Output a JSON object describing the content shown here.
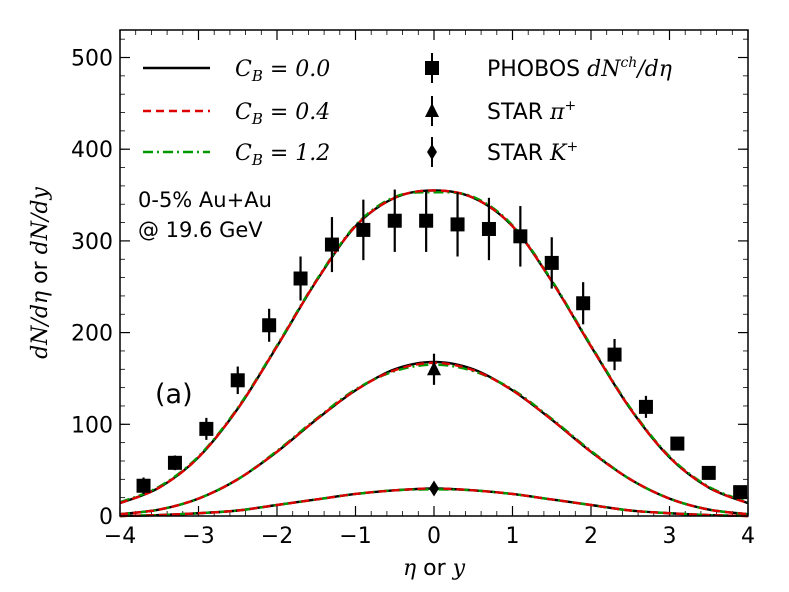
{
  "chart_data": {
    "type": "line",
    "xlabel": "η or y",
    "ylabel": "dN/dη or dN/dy",
    "xlim": [
      -4,
      4
    ],
    "ylim": [
      0,
      530
    ],
    "x_ticks": [
      -4,
      -3,
      -2,
      -1,
      0,
      1,
      2,
      3,
      4
    ],
    "x_tick_labels": [
      "−4",
      "−3",
      "−2",
      "−1",
      "0",
      "1",
      "2",
      "3",
      "4"
    ],
    "y_ticks": [
      0,
      100,
      200,
      300,
      400,
      500
    ],
    "y_tick_labels": [
      "0",
      "100",
      "200",
      "300",
      "400",
      "500"
    ],
    "legend_position": "top",
    "annotations": {
      "system_line1": "0-5% Au+Au",
      "system_line2": "@ 19.6 GeV",
      "panel": "(a)"
    },
    "colors": {
      "cb00": "#000000",
      "cb04": "#dd0000",
      "cb12": "#009900",
      "data": "#000000"
    },
    "theory_x": [
      -4.0,
      -3.5,
      -3.0,
      -2.5,
      -2.0,
      -1.5,
      -1.0,
      -0.5,
      0.0,
      0.5,
      1.0,
      1.5,
      2.0,
      2.5,
      3.0,
      3.5,
      4.0
    ],
    "lines": [
      {
        "group": "charged",
        "name": "C_B = 0.0",
        "style": "solid",
        "values": [
          14,
          31,
          64,
          117,
          185,
          256,
          316,
          347,
          355,
          347,
          316,
          256,
          185,
          117,
          64,
          31,
          14
        ]
      },
      {
        "group": "charged",
        "name": "C_B = 0.4",
        "style": "dashed",
        "values": [
          14,
          31,
          64,
          117,
          185,
          256,
          316,
          347,
          355,
          347,
          316,
          256,
          185,
          117,
          64,
          31,
          14
        ]
      },
      {
        "group": "charged",
        "name": "C_B = 1.2",
        "style": "dashdot",
        "values": [
          15,
          32,
          65,
          118,
          186,
          257,
          317,
          348,
          353,
          348,
          317,
          257,
          186,
          118,
          65,
          32,
          15
        ]
      },
      {
        "group": "pion",
        "name": "C_B = 0.0",
        "style": "solid",
        "values": [
          2,
          7,
          19,
          40,
          70,
          105,
          137,
          160,
          168,
          160,
          137,
          105,
          70,
          40,
          19,
          7,
          2
        ]
      },
      {
        "group": "pion",
        "name": "C_B = 0.4",
        "style": "dashed",
        "values": [
          2,
          7,
          19,
          40,
          70,
          105,
          137,
          159,
          167,
          159,
          137,
          105,
          70,
          40,
          19,
          7,
          2
        ]
      },
      {
        "group": "pion",
        "name": "C_B = 1.2",
        "style": "dashdot",
        "values": [
          2,
          7,
          19,
          40,
          71,
          106,
          138,
          158,
          165,
          158,
          138,
          106,
          71,
          40,
          19,
          7,
          2
        ]
      },
      {
        "group": "kaon",
        "name": "C_B = 0.0",
        "style": "solid",
        "values": [
          0,
          1,
          3,
          6,
          12,
          18,
          24,
          28,
          30,
          28,
          24,
          18,
          12,
          6,
          3,
          1,
          0
        ]
      },
      {
        "group": "kaon",
        "name": "C_B = 0.4",
        "style": "dashed",
        "values": [
          0,
          1,
          3,
          6,
          12,
          18,
          24,
          28,
          30,
          28,
          24,
          18,
          12,
          6,
          3,
          1,
          0
        ]
      },
      {
        "group": "kaon",
        "name": "C_B = 1.2",
        "style": "dashdot",
        "values": [
          0,
          1,
          3,
          6,
          12,
          18,
          24,
          28,
          29,
          28,
          24,
          18,
          12,
          6,
          3,
          1,
          0
        ]
      }
    ],
    "phobos": {
      "x": [
        -3.7,
        -3.3,
        -2.9,
        -2.5,
        -2.1,
        -1.7,
        -1.3,
        -0.9,
        -0.5,
        -0.1,
        0.3,
        0.7,
        1.1,
        1.5,
        1.9,
        2.3,
        2.7,
        3.1,
        3.5,
        3.9
      ],
      "y": [
        33,
        58,
        95,
        148,
        208,
        259,
        296,
        312,
        322,
        322,
        318,
        313,
        305,
        276,
        232,
        176,
        119,
        79,
        47,
        26
      ],
      "err": [
        9,
        8,
        12,
        15,
        18,
        24,
        30,
        33,
        34,
        34,
        35,
        34,
        33,
        28,
        23,
        17,
        12,
        0,
        0,
        0
      ]
    },
    "star_pion": {
      "x": [
        0.0
      ],
      "y": [
        160
      ],
      "err": [
        17
      ]
    },
    "star_kaon": {
      "x": [
        0.0
      ],
      "y": [
        30
      ],
      "err": [
        4
      ]
    },
    "legend": {
      "lines": [
        {
          "label_prefix": "C",
          "label_sub": "B",
          "label_eq": "= 0.0",
          "color": "#000000",
          "style": "solid"
        },
        {
          "label_prefix": "C",
          "label_sub": "B",
          "label_eq": "= 0.4",
          "color": "#dd0000",
          "style": "dashed"
        },
        {
          "label_prefix": "C",
          "label_sub": "B",
          "label_eq": "= 1.2",
          "color": "#009900",
          "style": "dashdot"
        }
      ],
      "markers": [
        {
          "text": "PHOBOS",
          "math": "dN",
          "sup": "ch",
          "math2": "/dη",
          "marker": "square"
        },
        {
          "text": "STAR",
          "math": "π",
          "sup": "+",
          "math2": "",
          "marker": "triangle"
        },
        {
          "text": "STAR",
          "math": "K",
          "sup": "+",
          "math2": "",
          "marker": "diamond"
        }
      ]
    }
  }
}
